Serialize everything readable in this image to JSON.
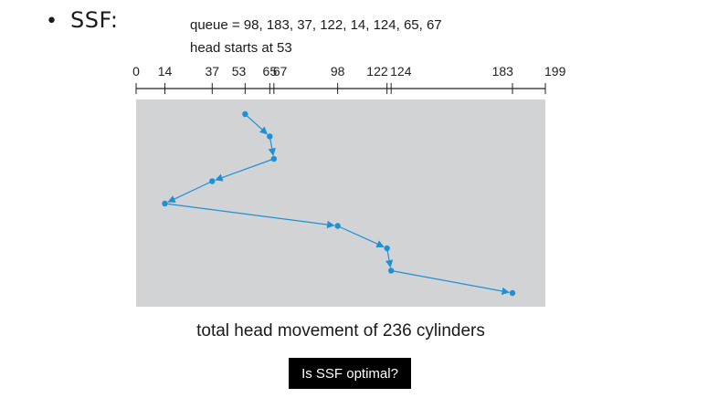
{
  "slide": {
    "bullet": "•",
    "heading": "SSF:",
    "queue_line": "queue = 98, 183, 37, 122, 14, 124, 65, 67",
    "head_line": "head starts at 53",
    "caption": "total head movement of 236 cylinders",
    "question": "Is SSF optimal?"
  },
  "diagram": {
    "axis_min": 0,
    "axis_max": 199,
    "ticks": [
      {
        "value": 0,
        "label": "0"
      },
      {
        "value": 14,
        "label": "14"
      },
      {
        "value": 37,
        "label": "37"
      },
      {
        "value": 53,
        "label": "53"
      },
      {
        "value": 65,
        "label": "65"
      },
      {
        "value": 67,
        "label": "67"
      },
      {
        "value": 98,
        "label": "98"
      },
      {
        "value": 122,
        "label": "122"
      },
      {
        "value": 124,
        "label": "124"
      },
      {
        "value": 183,
        "label": "183"
      },
      {
        "value": 199,
        "label": "199"
      }
    ],
    "service_order": [
      53,
      65,
      67,
      37,
      14,
      98,
      122,
      124,
      183
    ],
    "colors": {
      "panel": "#d2d3d5",
      "path": "#1e90d6",
      "axis": "#222222"
    }
  }
}
